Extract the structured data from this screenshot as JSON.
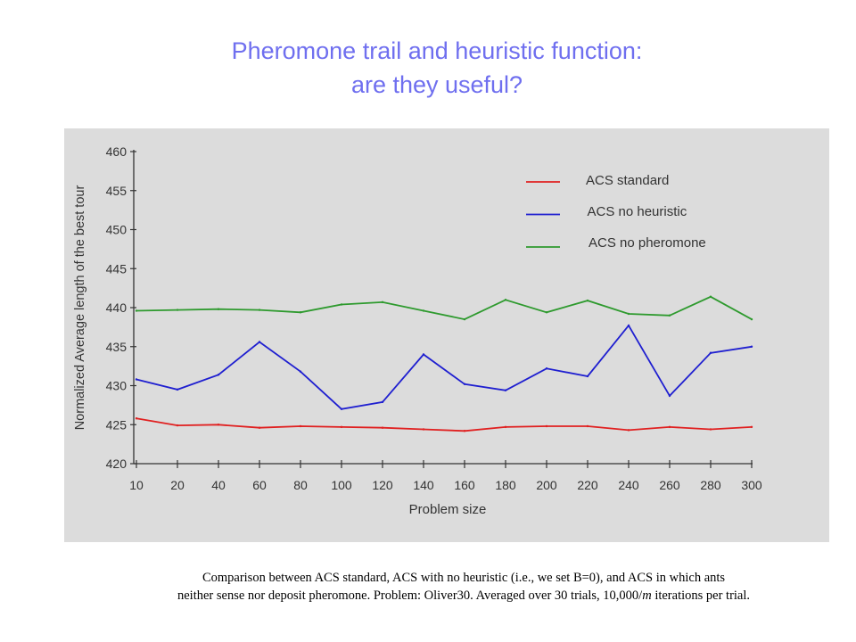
{
  "title": {
    "line1": "Pheromone trail and heuristic function:",
    "line2": "are they useful?"
  },
  "caption": {
    "line1": "Comparison between ACS standard, ACS with no heuristic (i.e., we set B=0), and ACS in which ants",
    "line2_prefix": "neither sense nor deposit pheromone. Problem: Oliver30. Averaged over 30 trials, 10,000/",
    "line2_italic": "m",
    "line2_suffix": " iterations per trial."
  },
  "colors": {
    "title": "#6f6fef",
    "panel_background": "#dcdcdc",
    "acs_standard": "#e02020",
    "acs_no_heuristic": "#1f1fd0",
    "acs_no_pheromone": "#2e9a2e"
  },
  "chart_data": {
    "type": "line",
    "xlabel": "Problem size",
    "ylabel": "Normalized Average length of the best tour",
    "categories": [
      "10",
      "20",
      "40",
      "60",
      "80",
      "100",
      "120",
      "140",
      "160",
      "180",
      "200",
      "220",
      "240",
      "260",
      "280",
      "300"
    ],
    "ylim": [
      420,
      460
    ],
    "yticks": [
      420,
      425,
      430,
      435,
      440,
      445,
      450,
      455,
      460
    ],
    "grid": false,
    "legend_position": "top-right",
    "series": [
      {
        "name": "ACS standard",
        "color": "#e02020",
        "values": [
          425.8,
          424.9,
          425.0,
          424.6,
          424.8,
          424.7,
          424.6,
          424.4,
          424.2,
          424.7,
          424.8,
          424.8,
          424.3,
          424.7,
          424.4,
          424.7
        ]
      },
      {
        "name": "ACS no heuristic",
        "color": "#1f1fd0",
        "values": [
          430.8,
          429.5,
          431.4,
          435.6,
          431.8,
          427.0,
          427.9,
          434.0,
          430.2,
          429.4,
          432.2,
          431.2,
          437.7,
          428.7,
          434.2,
          435.0
        ]
      },
      {
        "name": "ACS no pheromone",
        "color": "#2e9a2e",
        "values": [
          439.6,
          439.7,
          439.8,
          439.7,
          439.4,
          440.4,
          440.7,
          439.6,
          438.5,
          441.0,
          439.4,
          440.9,
          439.2,
          439.0,
          441.4,
          438.5
        ]
      }
    ]
  }
}
